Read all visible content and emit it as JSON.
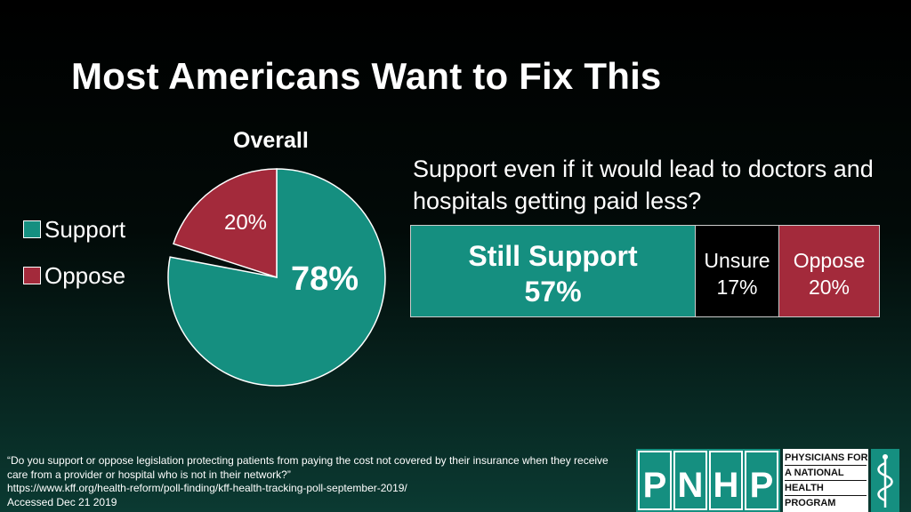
{
  "title": "Most Americans Want to Fix This",
  "colors": {
    "support": "#158f80",
    "oppose": "#a32a3b",
    "unsure": "#000000"
  },
  "chart_data": [
    {
      "type": "pie",
      "title": "Overall",
      "legend_position": "left",
      "slices": [
        {
          "name": "Support",
          "value": 78,
          "label": "78%"
        },
        {
          "name": "Oppose",
          "value": 20,
          "label": "20%"
        }
      ]
    },
    {
      "type": "bar",
      "orientation": "horizontal-stacked",
      "title": "Support even if it would lead to doctors and hospitals getting paid less?",
      "segments": [
        {
          "name": "Still Support",
          "value": 57,
          "label": "57%"
        },
        {
          "name": "Unsure",
          "value": 17,
          "label": "17%"
        },
        {
          "name": "Oppose",
          "value": 20,
          "label": "20%"
        }
      ]
    }
  ],
  "footnote": {
    "quote": "“Do you support or oppose legislation protecting patients from paying the cost not covered by their insurance when they receive care from a provider or hospital who is not in their network?”",
    "url": "https://www.kff.org/health-reform/poll-finding/kff-health-tracking-poll-september-2019/",
    "accessed": "Accessed Dec 21 2019"
  },
  "logo": {
    "letters": [
      "P",
      "N",
      "H",
      "P"
    ],
    "text_lines": [
      "PHYSICIANS FOR",
      "A NATIONAL",
      "HEALTH",
      "PROGRAM"
    ],
    "icon": "caduceus-icon"
  }
}
